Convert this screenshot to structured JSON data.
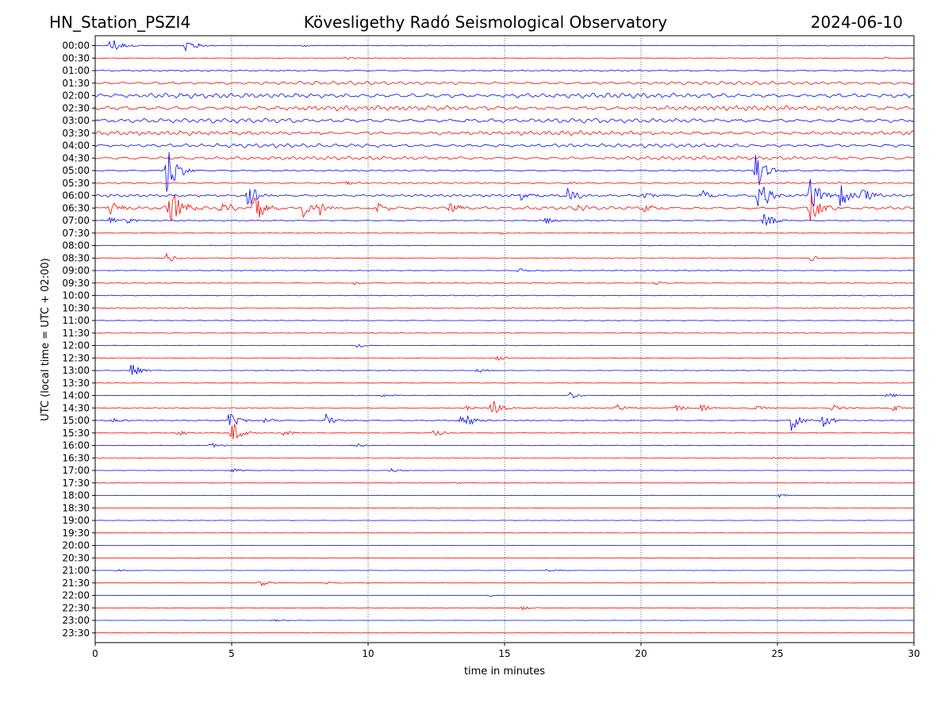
{
  "chart_data": {
    "type": "line",
    "title_left": "HN_Station_PSZI4",
    "title_center": "Kövesligethy Radó Seismological Observatory",
    "title_right": "2024-06-10",
    "xlabel": "time in minutes",
    "ylabel": "UTC (local time = UTC + 02:00)",
    "xlim": [
      0,
      30
    ],
    "x_ticks": [
      "0",
      "5",
      "10",
      "15",
      "20",
      "25",
      "30"
    ],
    "vertical_gridlines_minutes": [
      5,
      10,
      15,
      20,
      25
    ],
    "row_labels": [
      "00:00",
      "00:30",
      "01:00",
      "01:30",
      "02:00",
      "02:30",
      "03:00",
      "03:30",
      "04:00",
      "04:30",
      "05:00",
      "05:30",
      "06:00",
      "06:30",
      "07:00",
      "07:30",
      "08:00",
      "08:30",
      "09:00",
      "09:30",
      "10:00",
      "10:30",
      "11:00",
      "11:30",
      "12:00",
      "12:30",
      "13:00",
      "13:30",
      "14:00",
      "14:30",
      "15:00",
      "15:30",
      "16:00",
      "16:30",
      "17:00",
      "17:30",
      "18:00",
      "18:30",
      "19:00",
      "19:30",
      "20:00",
      "20:30",
      "21:00",
      "21:30",
      "22:00",
      "22:30",
      "23:00",
      "23:30"
    ],
    "trace_colors": [
      "#0000ff",
      "#ff0000"
    ],
    "row_activity": [
      0.4,
      0.3,
      0.8,
      2.2,
      3.0,
      3.0,
      2.8,
      2.6,
      2.4,
      2.2,
      0.9,
      1.0,
      1.6,
      2.0,
      0.6,
      0.3,
      0.35,
      0.35,
      0.4,
      0.55,
      0.45,
      0.4,
      0.35,
      0.45,
      0.3,
      0.3,
      0.3,
      0.3,
      0.35,
      0.45,
      0.5,
      0.3,
      0.4,
      0.3,
      0.2,
      0.2,
      0.2,
      0.15,
      0.2,
      0.2,
      0.15,
      0.15,
      0.15,
      0.15,
      0.15,
      0.15,
      0.15,
      0.12
    ],
    "events": [
      {
        "row": 0,
        "minute": 0.55,
        "amp": 14
      },
      {
        "row": 0,
        "minute": 3.3,
        "amp": 13
      },
      {
        "row": 0,
        "minute": 7.6,
        "amp": 2
      },
      {
        "row": 1,
        "minute": 9.0,
        "amp": 3
      },
      {
        "row": 1,
        "minute": 28.9,
        "amp": 2
      },
      {
        "row": 10,
        "minute": 2.6,
        "amp": 40
      },
      {
        "row": 10,
        "minute": 24.2,
        "amp": 30
      },
      {
        "row": 11,
        "minute": 9.2,
        "amp": 3
      },
      {
        "row": 11,
        "minute": 17.2,
        "amp": 3
      },
      {
        "row": 12,
        "minute": 5.6,
        "amp": 20
      },
      {
        "row": 12,
        "minute": 15.6,
        "amp": 6
      },
      {
        "row": 12,
        "minute": 17.3,
        "amp": 10
      },
      {
        "row": 12,
        "minute": 20.1,
        "amp": 8
      },
      {
        "row": 12,
        "minute": 22.2,
        "amp": 8
      },
      {
        "row": 12,
        "minute": 24.3,
        "amp": 26
      },
      {
        "row": 12,
        "minute": 26.2,
        "amp": 28
      },
      {
        "row": 12,
        "minute": 27.3,
        "amp": 18
      },
      {
        "row": 12,
        "minute": 28.1,
        "amp": 14
      },
      {
        "row": 13,
        "minute": 0.5,
        "amp": 12
      },
      {
        "row": 13,
        "minute": 2.7,
        "amp": 40
      },
      {
        "row": 13,
        "minute": 4.6,
        "amp": 12
      },
      {
        "row": 13,
        "minute": 5.8,
        "amp": 22
      },
      {
        "row": 13,
        "minute": 7.6,
        "amp": 12
      },
      {
        "row": 13,
        "minute": 8.1,
        "amp": 14
      },
      {
        "row": 13,
        "minute": 10.3,
        "amp": 8
      },
      {
        "row": 13,
        "minute": 13.0,
        "amp": 8
      },
      {
        "row": 13,
        "minute": 17.6,
        "amp": 6
      },
      {
        "row": 13,
        "minute": 20.1,
        "amp": 6
      },
      {
        "row": 13,
        "minute": 26.2,
        "amp": 22
      },
      {
        "row": 14,
        "minute": 0.5,
        "amp": 6
      },
      {
        "row": 14,
        "minute": 1.0,
        "amp": 8
      },
      {
        "row": 14,
        "minute": 16.5,
        "amp": 5
      },
      {
        "row": 14,
        "minute": 24.5,
        "amp": 12
      },
      {
        "row": 15,
        "minute": 14.8,
        "amp": 2
      },
      {
        "row": 17,
        "minute": 2.6,
        "amp": 8
      },
      {
        "row": 17,
        "minute": 26.2,
        "amp": 4
      },
      {
        "row": 18,
        "minute": 15.5,
        "amp": 3
      },
      {
        "row": 19,
        "minute": 9.5,
        "amp": 3
      },
      {
        "row": 19,
        "minute": 20.5,
        "amp": 3
      },
      {
        "row": 24,
        "minute": 9.6,
        "amp": 3
      },
      {
        "row": 25,
        "minute": 14.7,
        "amp": 4
      },
      {
        "row": 26,
        "minute": 1.3,
        "amp": 10
      },
      {
        "row": 26,
        "minute": 14.0,
        "amp": 4
      },
      {
        "row": 28,
        "minute": 10.5,
        "amp": 3
      },
      {
        "row": 28,
        "minute": 17.4,
        "amp": 5
      },
      {
        "row": 28,
        "minute": 29.0,
        "amp": 5
      },
      {
        "row": 29,
        "minute": 14.5,
        "amp": 14
      },
      {
        "row": 29,
        "minute": 13.5,
        "amp": 4
      },
      {
        "row": 29,
        "minute": 19.1,
        "amp": 6
      },
      {
        "row": 29,
        "minute": 21.2,
        "amp": 6
      },
      {
        "row": 29,
        "minute": 22.2,
        "amp": 5
      },
      {
        "row": 29,
        "minute": 24.0,
        "amp": 6
      },
      {
        "row": 29,
        "minute": 27.0,
        "amp": 5
      },
      {
        "row": 29,
        "minute": 29.2,
        "amp": 5
      },
      {
        "row": 30,
        "minute": 0.6,
        "amp": 5
      },
      {
        "row": 30,
        "minute": 4.9,
        "amp": 12
      },
      {
        "row": 30,
        "minute": 6.2,
        "amp": 5
      },
      {
        "row": 30,
        "minute": 8.4,
        "amp": 10
      },
      {
        "row": 30,
        "minute": 13.4,
        "amp": 14
      },
      {
        "row": 30,
        "minute": 25.5,
        "amp": 14
      },
      {
        "row": 30,
        "minute": 26.6,
        "amp": 12
      },
      {
        "row": 31,
        "minute": 3.0,
        "amp": 5
      },
      {
        "row": 31,
        "minute": 5.0,
        "amp": 16
      },
      {
        "row": 31,
        "minute": 6.9,
        "amp": 5
      },
      {
        "row": 31,
        "minute": 12.4,
        "amp": 6
      },
      {
        "row": 32,
        "minute": 4.2,
        "amp": 4
      },
      {
        "row": 32,
        "minute": 9.6,
        "amp": 3
      },
      {
        "row": 33,
        "minute": 24.8,
        "amp": 3
      },
      {
        "row": 34,
        "minute": 5.0,
        "amp": 3
      },
      {
        "row": 34,
        "minute": 10.8,
        "amp": 3
      },
      {
        "row": 35,
        "minute": 13.0,
        "amp": 2
      },
      {
        "row": 36,
        "minute": 25.0,
        "amp": 3
      },
      {
        "row": 42,
        "minute": 0.8,
        "amp": 2
      },
      {
        "row": 42,
        "minute": 16.5,
        "amp": 2
      },
      {
        "row": 43,
        "minute": 6.0,
        "amp": 5
      },
      {
        "row": 43,
        "minute": 8.5,
        "amp": 2
      },
      {
        "row": 44,
        "minute": 14.4,
        "amp": 2
      },
      {
        "row": 45,
        "minute": 15.6,
        "amp": 3
      },
      {
        "row": 46,
        "minute": 6.5,
        "amp": 2
      }
    ]
  }
}
